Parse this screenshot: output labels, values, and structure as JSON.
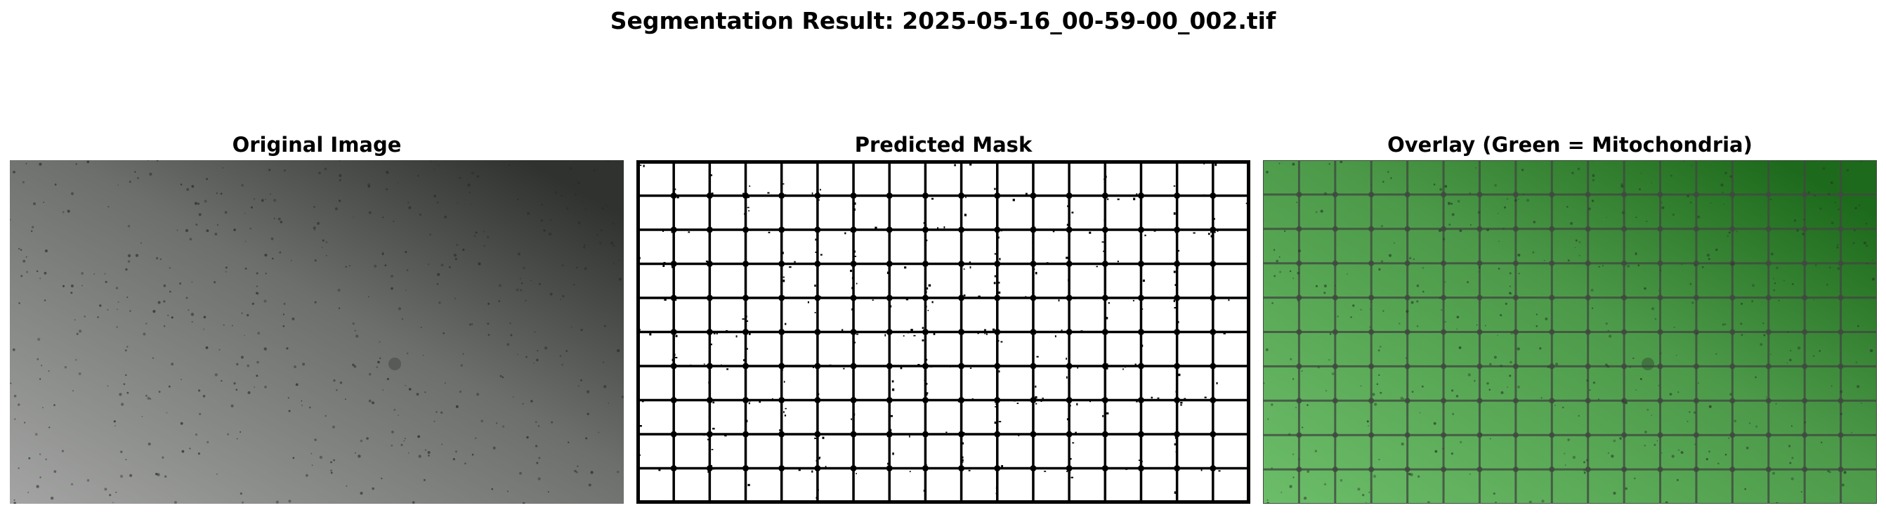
{
  "figure": {
    "title": "Segmentation Result: 2025-05-16_00-59-00_002.tif"
  },
  "panels": [
    {
      "id": "original",
      "title": "Original Image"
    },
    {
      "id": "mask",
      "title": "Predicted Mask"
    },
    {
      "id": "overlay",
      "title": "Overlay (Green = Mitochondria)"
    }
  ],
  "grid": {
    "columns": 17,
    "rows": 10
  },
  "colors": {
    "original_light": "#a3a4a3",
    "original_mid": "#6c6f6b",
    "original_dark": "#2f322e",
    "mask_background": "#ffffff",
    "mask_lines": "#000000",
    "overlay_light": "#6cbd69",
    "overlay_mid": "#4c9a49",
    "overlay_dark": "#1e6a1c",
    "overlay_lines": "#404a40"
  }
}
